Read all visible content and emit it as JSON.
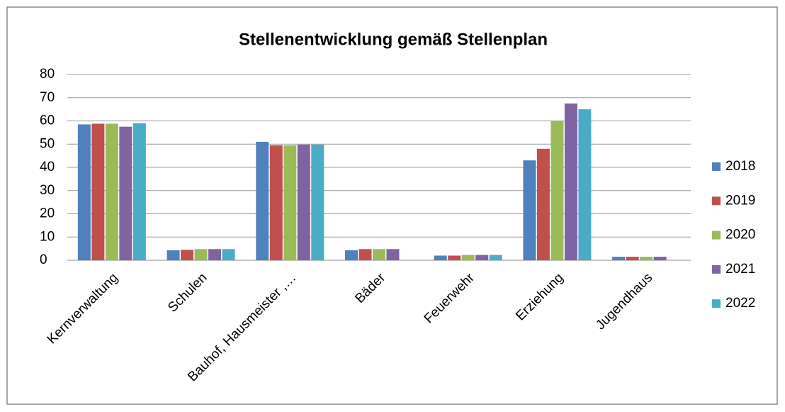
{
  "chart_data": {
    "type": "bar",
    "title": "Stellenentwicklung gemäß Stellenplan",
    "categories": [
      "Kernverwaltung",
      "Schulen",
      "Bauhof, Hausmeister ,…",
      "Bäder",
      "Feuerwehr",
      "Erziehung",
      "Jugendhaus"
    ],
    "series": [
      {
        "name": "2018",
        "color": "#4f81bd",
        "values": [
          58.5,
          4.3,
          51,
          4.3,
          2,
          43,
          1.5
        ]
      },
      {
        "name": "2019",
        "color": "#c0504d",
        "values": [
          58.8,
          4.5,
          49.5,
          4.8,
          2,
          48,
          1.5
        ]
      },
      {
        "name": "2020",
        "color": "#9bbb59",
        "values": [
          58.8,
          4.8,
          49.5,
          4.8,
          2.3,
          60,
          1.5
        ]
      },
      {
        "name": "2021",
        "color": "#8064a2",
        "values": [
          57.5,
          4.8,
          49.8,
          4.8,
          2.3,
          67.5,
          1.5
        ]
      },
      {
        "name": "2022",
        "color": "#4bacc6",
        "values": [
          59,
          4.8,
          49.8,
          null,
          2.3,
          65,
          null
        ]
      }
    ],
    "ylim": [
      0,
      80
    ],
    "yticks": [
      0,
      10,
      20,
      30,
      40,
      50,
      60,
      70,
      80
    ],
    "grid": true,
    "legend": "right"
  }
}
